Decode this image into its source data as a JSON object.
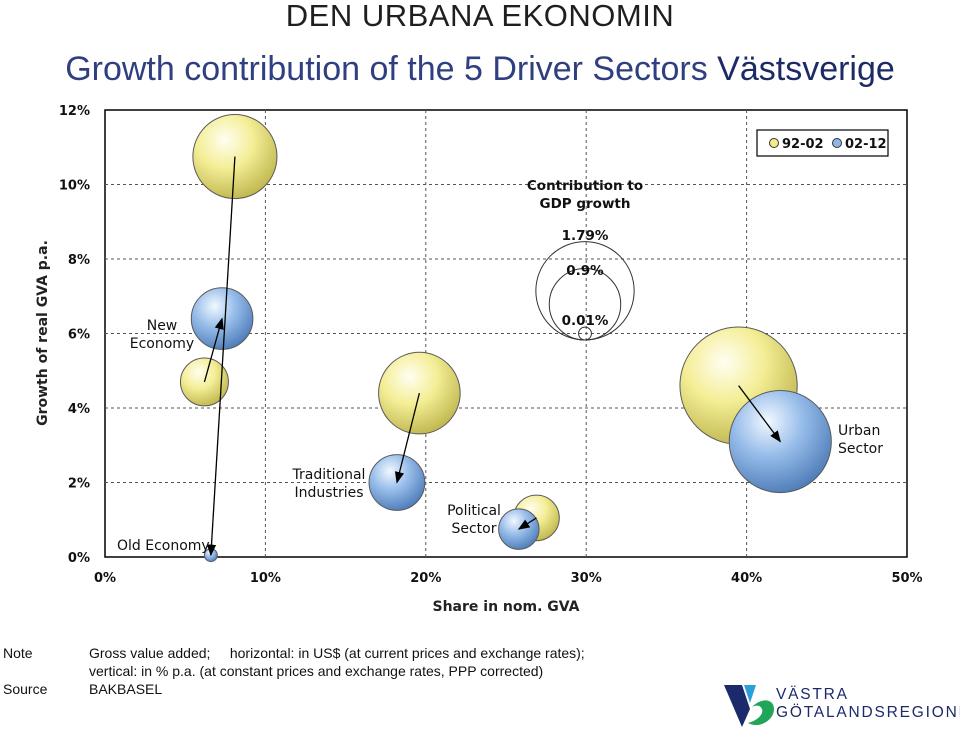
{
  "header": {
    "title": "DEN URBANA EKONOMIN",
    "subtitle_main": "Growth contribution of the 5 Driver Sectors",
    "subtitle_region": "Västsverige"
  },
  "chart_data": {
    "type": "bubble",
    "xlabel": "Share in nom. GVA",
    "ylabel": "Growth of real GVA p.a.",
    "xlim": [
      0,
      50
    ],
    "ylim": [
      0,
      12
    ],
    "x_ticks": [
      "0%",
      "10%",
      "20%",
      "30%",
      "40%",
      "50%"
    ],
    "y_ticks": [
      "0%",
      "2%",
      "4%",
      "6%",
      "8%",
      "10%",
      "12%"
    ],
    "grid": true,
    "legend": {
      "placement": "top-right",
      "entries": [
        {
          "label": "92-02",
          "color": "#f2ec8a"
        },
        {
          "label": "02-12",
          "color": "#8fb6e6"
        }
      ]
    },
    "size_reference": {
      "title_line1": "Contribution to",
      "title_line2": "GDP growth",
      "circles": [
        {
          "label": "1.79%",
          "value": 1.79
        },
        {
          "label": "0.9%",
          "value": 0.9
        },
        {
          "label": "0.01%",
          "value": 0.01
        }
      ]
    },
    "sectors": [
      {
        "name_line1": "Old Economy",
        "name_line2": "",
        "points": [
          {
            "period": "92-02",
            "x": 8.1,
            "y": 10.75,
            "contribution": 1.28
          },
          {
            "period": "02-12",
            "x": 6.6,
            "y": 0.05,
            "contribution": 0.01
          }
        ]
      },
      {
        "name_line1": "New",
        "name_line2": "Economy",
        "points": [
          {
            "period": "92-02",
            "x": 6.2,
            "y": 4.7,
            "contribution": 0.37
          },
          {
            "period": "02-12",
            "x": 7.3,
            "y": 6.4,
            "contribution": 0.65
          }
        ]
      },
      {
        "name_line1": "Traditional",
        "name_line2": "Industries",
        "points": [
          {
            "period": "92-02",
            "x": 19.6,
            "y": 4.4,
            "contribution": 1.2
          },
          {
            "period": "02-12",
            "x": 18.2,
            "y": 2.0,
            "contribution": 0.52
          }
        ]
      },
      {
        "name_line1": "Political",
        "name_line2": "Sector",
        "points": [
          {
            "period": "92-02",
            "x": 26.9,
            "y": 1.05,
            "contribution": 0.33
          },
          {
            "period": "02-12",
            "x": 25.8,
            "y": 0.75,
            "contribution": 0.25
          }
        ]
      },
      {
        "name_line1": "Urban",
        "name_line2": "Sector",
        "points": [
          {
            "period": "92-02",
            "x": 39.5,
            "y": 4.6,
            "contribution": 2.6
          },
          {
            "period": "02-12",
            "x": 42.1,
            "y": 3.1,
            "contribution": 1.94
          }
        ]
      }
    ]
  },
  "notes": {
    "note_key": "Note",
    "note_line1": "Gross value added;     horizontal: in US$ (at current prices and exchange rates);",
    "note_line2": "vertical: in % p.a. (at constant prices and exchange rates, PPP corrected)",
    "source_key": "Source",
    "source_value": "BAKBASEL"
  },
  "logo": {
    "line1": "VÄSTRA",
    "line2": "GÖTALANDSREGIONEN"
  }
}
